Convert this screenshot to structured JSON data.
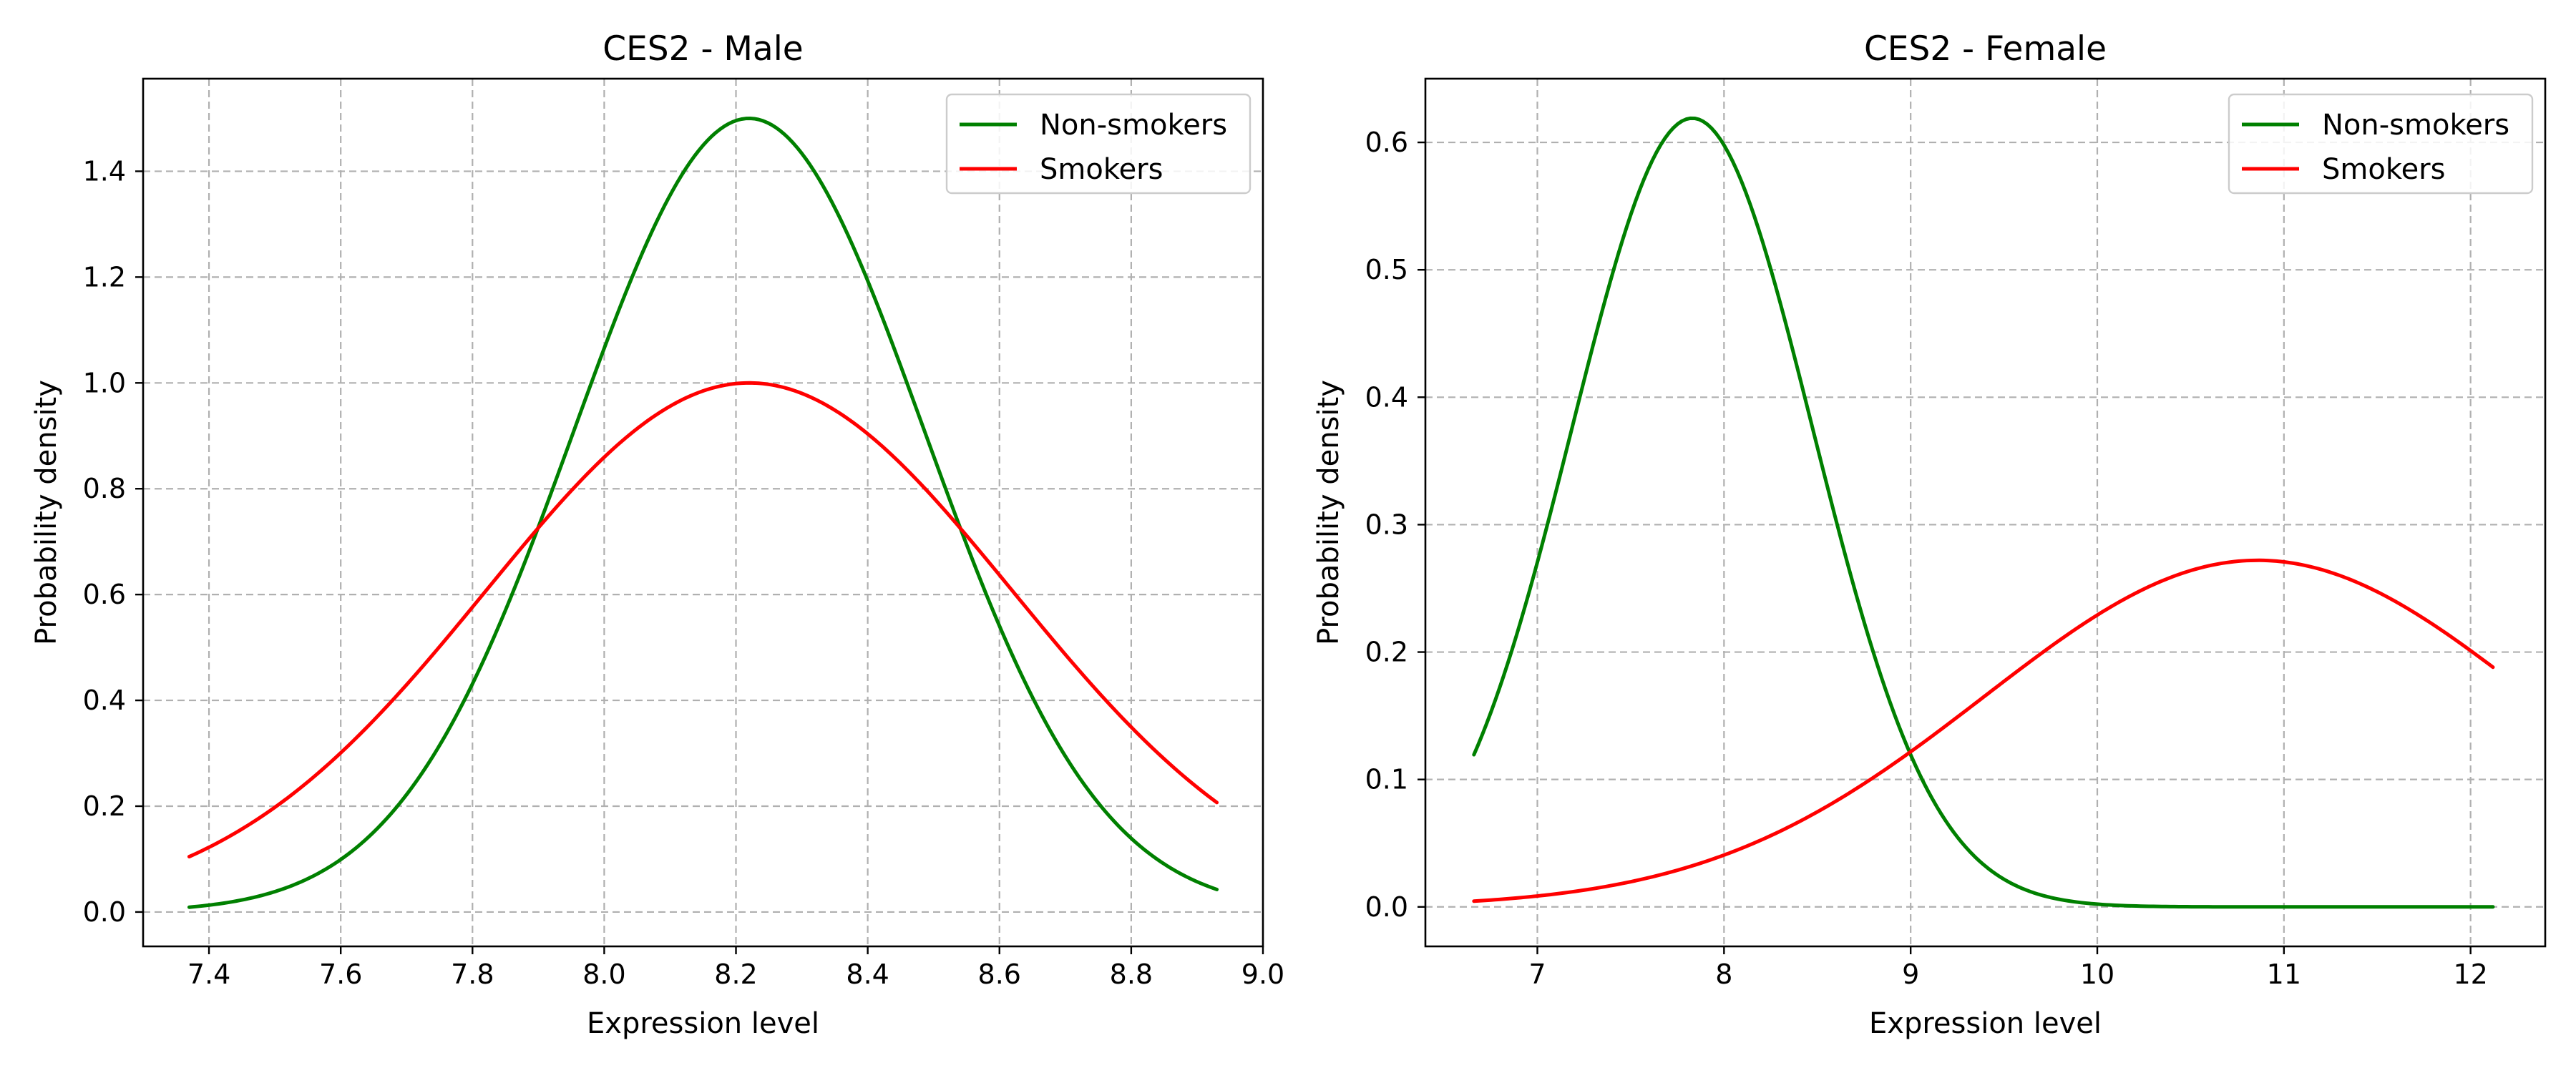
{
  "chart_data": [
    {
      "type": "line",
      "title": "CES2 - Male",
      "xlabel": "Expression level",
      "ylabel": "Probability density",
      "xlim": [
        7.3,
        9.0
      ],
      "ylim": [
        -0.065,
        1.575
      ],
      "xticks": [
        7.4,
        7.6,
        7.8,
        8.0,
        8.2,
        8.4,
        8.6,
        8.8,
        9.0
      ],
      "xtick_labels": [
        "7.4",
        "7.6",
        "7.8",
        "8.0",
        "8.2",
        "8.4",
        "8.6",
        "8.8",
        "9.0"
      ],
      "yticks": [
        0.0,
        0.2,
        0.4,
        0.6,
        0.8,
        1.0,
        1.2,
        1.4
      ],
      "ytick_labels": [
        "0.0",
        "0.2",
        "0.4",
        "0.6",
        "0.8",
        "1.0",
        "1.2",
        "1.4"
      ],
      "grid": true,
      "legend_position": "top-right",
      "x_range": [
        7.37,
        8.93
      ],
      "series": [
        {
          "name": "Non-smokers",
          "color": "#008000",
          "distribution": "normal",
          "mean": 8.22,
          "std": 0.266,
          "peak_y": 1.5
        },
        {
          "name": "Smokers",
          "color": "#ff0000",
          "distribution": "normal",
          "mean": 8.22,
          "std": 0.4,
          "peak_y": 1.0
        }
      ]
    },
    {
      "type": "line",
      "title": "CES2 - Female",
      "xlabel": "Expression level",
      "ylabel": "Probability density",
      "xlim": [
        6.4,
        12.4
      ],
      "ylim": [
        -0.031,
        0.65
      ],
      "xticks": [
        7,
        8,
        9,
        10,
        11,
        12
      ],
      "xtick_labels": [
        "7",
        "8",
        "9",
        "10",
        "11",
        "12"
      ],
      "yticks": [
        0.0,
        0.1,
        0.2,
        0.3,
        0.4,
        0.5,
        0.6
      ],
      "ytick_labels": [
        "0.0",
        "0.1",
        "0.2",
        "0.3",
        "0.4",
        "0.5",
        "0.6"
      ],
      "grid": true,
      "legend_position": "top-right",
      "x_range": [
        6.66,
        12.12
      ],
      "series": [
        {
          "name": "Non-smokers",
          "color": "#008000",
          "distribution": "normal",
          "mean": 7.83,
          "std": 0.645,
          "peak_y": 0.619
        },
        {
          "name": "Smokers",
          "color": "#ff0000",
          "distribution": "normal",
          "mean": 10.86,
          "std": 1.467,
          "peak_y": 0.272
        }
      ]
    }
  ]
}
